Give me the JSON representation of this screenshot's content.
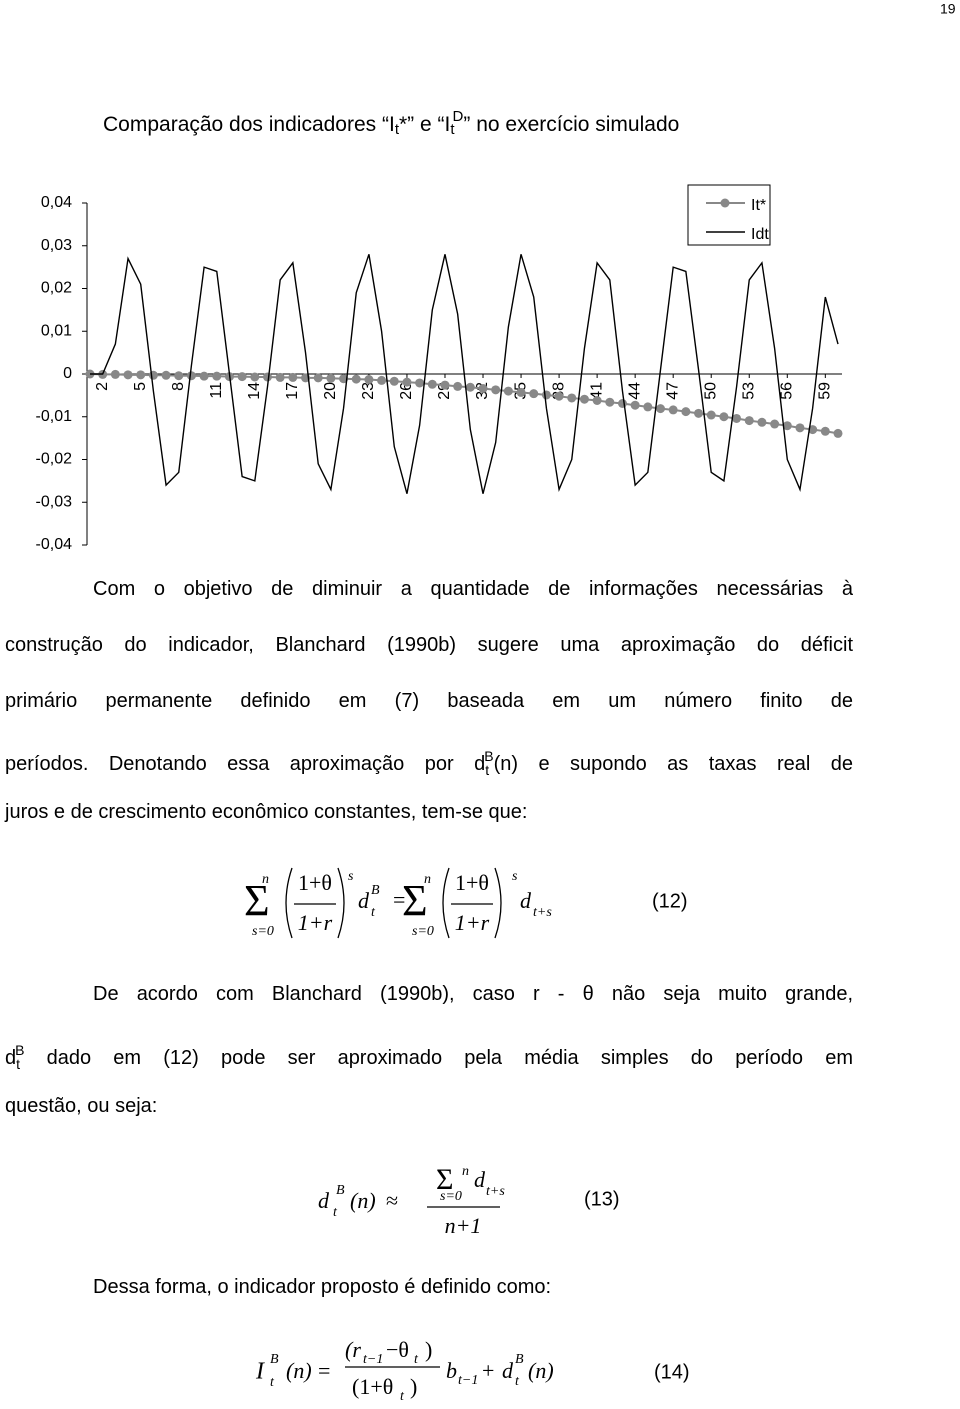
{
  "page_number": "19",
  "chart_data": {
    "type": "line",
    "title": [
      "Comparação dos indicadores “",
      "I",
      "t",
      "*” e “",
      "I",
      "t",
      "D",
      "” no exercício simulado"
    ],
    "x": [
      1,
      2,
      3,
      4,
      5,
      6,
      7,
      8,
      9,
      10,
      11,
      12,
      13,
      14,
      15,
      16,
      17,
      18,
      19,
      20,
      21,
      22,
      23,
      24,
      25,
      26,
      27,
      28,
      29,
      30,
      31,
      32,
      33,
      34,
      35,
      36,
      37,
      38,
      39,
      40,
      41,
      42,
      43,
      44,
      45,
      46,
      47,
      48,
      49,
      50,
      51,
      52,
      53,
      54,
      55,
      56,
      57,
      58,
      59,
      60
    ],
    "xlim": [
      1,
      60
    ],
    "xticks": [
      2,
      5,
      8,
      11,
      14,
      17,
      20,
      23,
      26,
      29,
      32,
      35,
      38,
      41,
      44,
      47,
      50,
      53,
      56,
      59
    ],
    "ylim": [
      -0.04,
      0.04
    ],
    "yticks": [
      {
        "value": 0.04,
        "label": "0,04"
      },
      {
        "value": 0.03,
        "label": "0,03"
      },
      {
        "value": 0.02,
        "label": "0,02"
      },
      {
        "value": 0.01,
        "label": "0,01"
      },
      0,
      {
        "value": -0.01,
        "label": "-0,01"
      },
      {
        "value": -0.02,
        "label": "-0,02"
      },
      {
        "value": -0.03,
        "label": "-0,03"
      },
      {
        "value": -0.04,
        "label": "-0,04"
      }
    ],
    "grid": false,
    "legend": "upper right",
    "series": [
      {
        "name": "It*",
        "color": "#888888",
        "marker": "circle",
        "values": [
          0,
          -0.0001,
          -0.0001,
          -0.0002,
          -0.0002,
          -0.0003,
          -0.0003,
          -0.0004,
          -0.0004,
          -0.0005,
          -0.0005,
          -0.0006,
          -0.0006,
          -0.0007,
          -0.0007,
          -0.0008,
          -0.0008,
          -0.0009,
          -0.0009,
          -0.001,
          -0.0011,
          -0.0012,
          -0.0013,
          -0.0015,
          -0.0017,
          -0.0019,
          -0.0021,
          -0.0024,
          -0.0026,
          -0.0029,
          -0.0031,
          -0.0034,
          -0.0037,
          -0.004,
          -0.0043,
          -0.0046,
          -0.0049,
          -0.0052,
          -0.0056,
          -0.0059,
          -0.0062,
          -0.0066,
          -0.0069,
          -0.0073,
          -0.0077,
          -0.0081,
          -0.0084,
          -0.0088,
          -0.0092,
          -0.0096,
          -0.01,
          -0.0104,
          -0.0109,
          -0.0113,
          -0.0117,
          -0.0121,
          -0.0126,
          -0.013,
          -0.0134,
          -0.0139
        ]
      },
      {
        "name": "Idt",
        "color": "#000000",
        "values": [
          0,
          0,
          0.007,
          0.027,
          0.021,
          -0.004,
          -0.026,
          -0.023,
          0.002,
          0.025,
          0.024,
          0,
          -0.024,
          -0.025,
          -0.003,
          0.022,
          0.026,
          0.005,
          -0.021,
          -0.027,
          -0.008,
          0.019,
          0.028,
          0.01,
          -0.017,
          -0.028,
          -0.012,
          0.015,
          0.028,
          0.014,
          -0.013,
          -0.028,
          -0.016,
          0.011,
          0.028,
          0.018,
          -0.008,
          -0.027,
          -0.02,
          0.006,
          0.026,
          0.022,
          -0.004,
          -0.026,
          -0.023,
          0.001,
          0.025,
          0.024,
          0.001,
          -0.023,
          -0.025,
          -0.003,
          0.022,
          0.026,
          0.006,
          -0.02,
          -0.027,
          -0.008,
          0.018,
          0.007
        ]
      }
    ]
  },
  "paragraphs": [
    {
      "lines": [
        [
          {
            "text": "Com o objetivo de diminuir a quantidade de informações necessárias à"
          }
        ],
        [
          {
            "text": "construção do indicador, Blanchard (1990b) sugere uma aproximação do déficit"
          }
        ],
        [
          {
            "text": "primário permanente definido em (7) baseada em um número finito de"
          }
        ],
        [
          {
            "text": "períodos. Denotando essa aproximação por d"
          },
          {
            "text": "t",
            "style": "sub"
          },
          {
            "text": "B",
            "style": "sup"
          },
          {
            "text": "(n) e supondo as taxas real de"
          }
        ],
        [
          {
            "text": "juros e de crescimento econômico constantes, tem-se que:"
          }
        ]
      ]
    },
    {
      "lines": [
        [
          {
            "text": "De acordo com Blanchard (1990b), caso r - θ não seja muito grande,"
          }
        ],
        [
          {
            "text": "d"
          },
          {
            "text": "t",
            "style": "sub"
          },
          {
            "text": "B",
            "style": "sup"
          },
          {
            "text": " dado em (12) pode ser aproximado pela média simples do período em"
          }
        ],
        [
          {
            "text": "questão, ou seja:"
          }
        ]
      ]
    },
    {
      "lines": [
        [
          {
            "text": "Dessa forma, o indicador proposto é definido como:"
          }
        ]
      ]
    }
  ],
  "equations": [
    {
      "parts": [
        "Σ",
        "n",
        "s=0",
        "1+θ",
        "1+r",
        "s",
        "d",
        "B",
        "t",
        "=",
        "Σ",
        "n",
        "s=0",
        "1+θ",
        "1+r",
        "s",
        "d",
        "t+s"
      ],
      "number": "(12)"
    },
    {
      "parts": [
        "d",
        "B",
        "t",
        "(n)",
        "≈",
        "Σ",
        "n",
        "s=0",
        "d",
        "t+s",
        "n+1"
      ],
      "number": "(13)"
    },
    {
      "parts": [
        "I",
        "B",
        "t",
        "(n)",
        "=",
        "(r",
        "t−1",
        "−θ",
        "t",
        ")",
        "(1+θ",
        "t",
        ")",
        "b",
        "t−1",
        "+",
        "d",
        "B",
        "t",
        "(n)"
      ],
      "number": "(14)"
    }
  ]
}
